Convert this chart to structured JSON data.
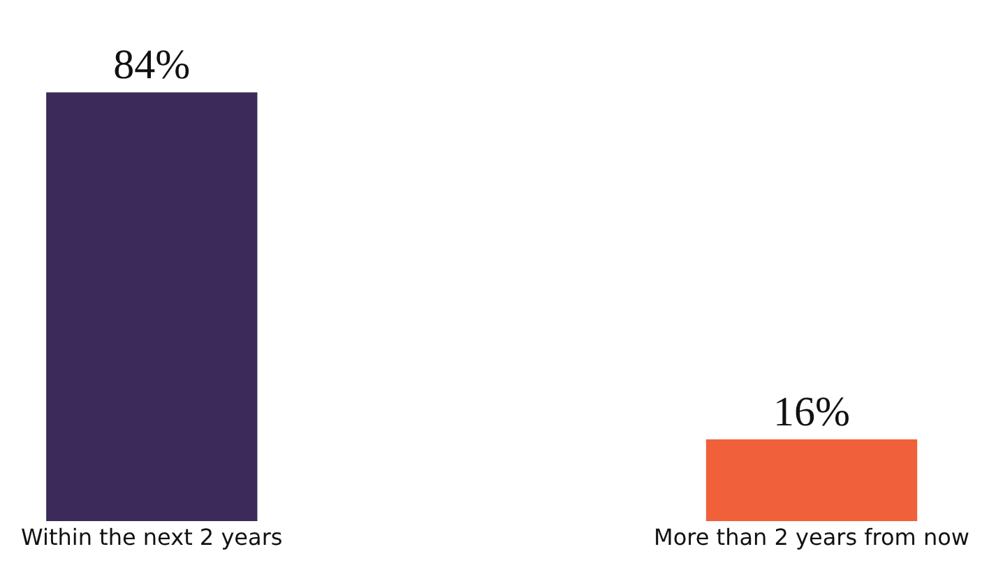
{
  "chart_data": {
    "type": "bar",
    "categories": [
      "Within the next 2 years",
      "More than 2 years from now"
    ],
    "values": [
      84,
      16
    ],
    "colors": [
      "#3b2a5a",
      "#f0603a"
    ],
    "value_labels": [
      "84%",
      "16%"
    ]
  }
}
